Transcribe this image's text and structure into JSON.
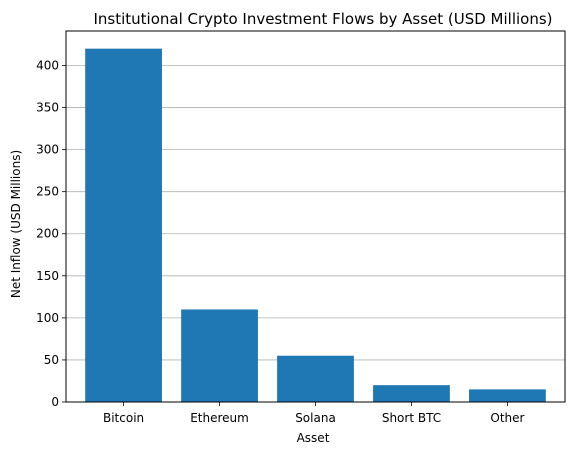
{
  "chart_data": {
    "type": "bar",
    "title": "Institutional Crypto Investment Flows by Asset (USD Millions)",
    "xlabel": "Asset",
    "ylabel": "Net Inflow (USD Millions)",
    "categories": [
      "Bitcoin",
      "Ethereum",
      "Solana",
      "Short BTC",
      "Other"
    ],
    "values": [
      420,
      110,
      55,
      20,
      15
    ],
    "ylim": [
      0,
      441
    ],
    "yticks": [
      0,
      50,
      100,
      150,
      200,
      250,
      300,
      350,
      400
    ],
    "ytick_labels": [
      "0",
      "50",
      "100",
      "150",
      "200",
      "250",
      "300",
      "350",
      "400"
    ],
    "grid": "horizontal",
    "bar_color": "#1f77b4",
    "grid_color": "#b0b0b0"
  }
}
